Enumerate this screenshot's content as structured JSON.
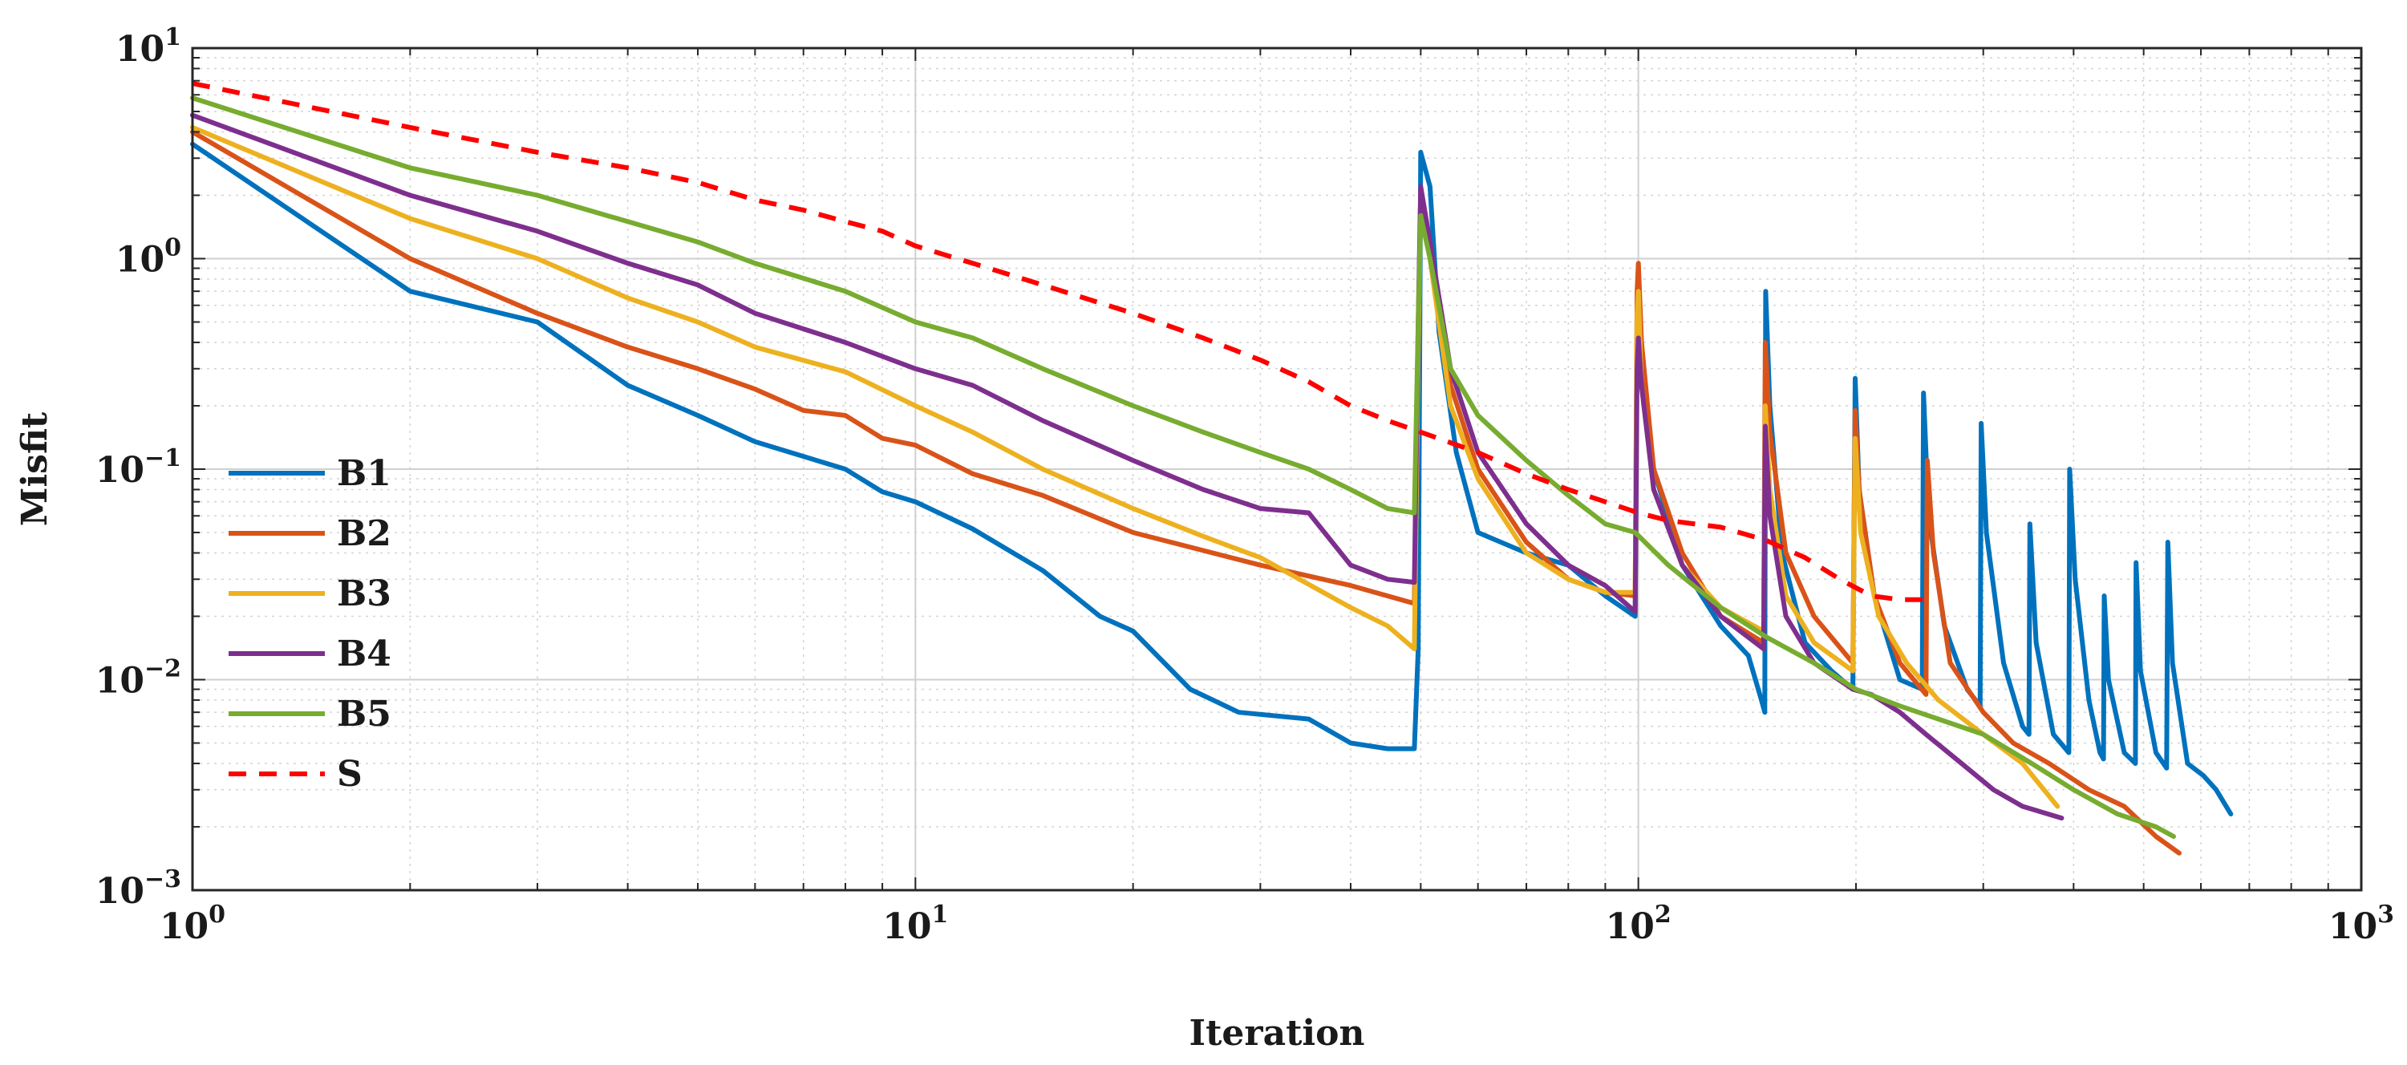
{
  "chart_data": {
    "type": "line",
    "xscale": "log",
    "yscale": "log",
    "title": "",
    "xlabel": "Iteration",
    "ylabel": "Misfit",
    "xlim": [
      1,
      1000
    ],
    "ylim": [
      0.001,
      10
    ],
    "grid": true,
    "minor_grid": true,
    "legend_position": "left",
    "xticks": [
      {
        "value": 1,
        "base": "10",
        "exp": "0"
      },
      {
        "value": 10,
        "base": "10",
        "exp": "1"
      },
      {
        "value": 100,
        "base": "10",
        "exp": "2"
      },
      {
        "value": 1000,
        "base": "10",
        "exp": "3"
      }
    ],
    "yticks": [
      {
        "value": 10,
        "base": "10",
        "exp": "1"
      },
      {
        "value": 1,
        "base": "10",
        "exp": "0"
      },
      {
        "value": 0.1,
        "base": "10",
        "exp": "−1"
      },
      {
        "value": 0.01,
        "base": "10",
        "exp": "−2"
      },
      {
        "value": 0.001,
        "base": "10",
        "exp": "−3"
      }
    ],
    "series": [
      {
        "name": "B1",
        "color": "#0072BD",
        "dash": false,
        "points": [
          [
            1,
            3.5
          ],
          [
            2,
            0.7
          ],
          [
            3,
            0.5
          ],
          [
            4,
            0.25
          ],
          [
            5,
            0.18
          ],
          [
            6,
            0.135
          ],
          [
            8,
            0.1
          ],
          [
            9,
            0.078
          ],
          [
            10,
            0.07
          ],
          [
            12,
            0.052
          ],
          [
            15,
            0.033
          ],
          [
            18,
            0.02
          ],
          [
            20,
            0.017
          ],
          [
            24,
            0.009
          ],
          [
            28,
            0.007
          ],
          [
            35,
            0.0065
          ],
          [
            40,
            0.005
          ],
          [
            45,
            0.0047
          ],
          [
            49,
            0.0047
          ],
          [
            49.6,
            0.014
          ],
          [
            50,
            3.2
          ],
          [
            51.5,
            2.2
          ],
          [
            53,
            0.45
          ],
          [
            56,
            0.12
          ],
          [
            60,
            0.05
          ],
          [
            70,
            0.04
          ],
          [
            80,
            0.035
          ],
          [
            90,
            0.025
          ],
          [
            99,
            0.02
          ],
          [
            99.6,
            0.5
          ],
          [
            100,
            0.9
          ],
          [
            101,
            0.3
          ],
          [
            105,
            0.1
          ],
          [
            115,
            0.035
          ],
          [
            130,
            0.018
          ],
          [
            142,
            0.013
          ],
          [
            148,
            0.008
          ],
          [
            149.6,
            0.007
          ],
          [
            150,
            0.7
          ],
          [
            152,
            0.2
          ],
          [
            158,
            0.04
          ],
          [
            170,
            0.015
          ],
          [
            185,
            0.011
          ],
          [
            198,
            0.009
          ],
          [
            199.5,
            0.27
          ],
          [
            202,
            0.08
          ],
          [
            212,
            0.025
          ],
          [
            230,
            0.01
          ],
          [
            247,
            0.009
          ],
          [
            248,
            0.23
          ],
          [
            252,
            0.06
          ],
          [
            265,
            0.018
          ],
          [
            285,
            0.009
          ],
          [
            297,
            0.0075
          ],
          [
            298,
            0.165
          ],
          [
            303,
            0.05
          ],
          [
            320,
            0.012
          ],
          [
            340,
            0.006
          ],
          [
            347,
            0.0055
          ],
          [
            348,
            0.055
          ],
          [
            355,
            0.015
          ],
          [
            375,
            0.0055
          ],
          [
            394,
            0.0045
          ],
          [
            395,
            0.1
          ],
          [
            402,
            0.03
          ],
          [
            420,
            0.008
          ],
          [
            435,
            0.0045
          ],
          [
            440,
            0.0042
          ],
          [
            441,
            0.025
          ],
          [
            447,
            0.01
          ],
          [
            470,
            0.0045
          ],
          [
            487,
            0.004
          ],
          [
            488,
            0.036
          ],
          [
            495,
            0.011
          ],
          [
            520,
            0.0045
          ],
          [
            538,
            0.0038
          ],
          [
            540,
            0.045
          ],
          [
            548,
            0.012
          ],
          [
            575,
            0.004
          ],
          [
            605,
            0.0035
          ],
          [
            630,
            0.003
          ],
          [
            660,
            0.0023
          ]
        ]
      },
      {
        "name": "B2",
        "color": "#D95319",
        "dash": false,
        "points": [
          [
            1,
            4
          ],
          [
            2,
            1.0
          ],
          [
            3,
            0.55
          ],
          [
            4,
            0.38
          ],
          [
            5,
            0.3
          ],
          [
            6,
            0.24
          ],
          [
            7,
            0.19
          ],
          [
            8,
            0.18
          ],
          [
            9,
            0.14
          ],
          [
            10,
            0.13
          ],
          [
            12,
            0.095
          ],
          [
            15,
            0.075
          ],
          [
            20,
            0.05
          ],
          [
            30,
            0.035
          ],
          [
            40,
            0.028
          ],
          [
            49,
            0.023
          ],
          [
            49.6,
            0.4
          ],
          [
            50,
            2.1
          ],
          [
            51.5,
            1.2
          ],
          [
            55,
            0.25
          ],
          [
            60,
            0.1
          ],
          [
            70,
            0.045
          ],
          [
            80,
            0.03
          ],
          [
            90,
            0.026
          ],
          [
            99,
            0.025
          ],
          [
            99.6,
            0.7
          ],
          [
            100,
            0.95
          ],
          [
            101,
            0.4
          ],
          [
            105,
            0.1
          ],
          [
            115,
            0.04
          ],
          [
            130,
            0.02
          ],
          [
            149,
            0.015
          ],
          [
            149.8,
            0.4
          ],
          [
            152,
            0.15
          ],
          [
            160,
            0.04
          ],
          [
            175,
            0.02
          ],
          [
            198,
            0.012
          ],
          [
            199.5,
            0.19
          ],
          [
            202,
            0.08
          ],
          [
            212,
            0.025
          ],
          [
            230,
            0.012
          ],
          [
            250,
            0.0085
          ],
          [
            251,
            0.11
          ],
          [
            256,
            0.04
          ],
          [
            270,
            0.012
          ],
          [
            300,
            0.007
          ],
          [
            330,
            0.005
          ],
          [
            370,
            0.004
          ],
          [
            420,
            0.003
          ],
          [
            470,
            0.0025
          ],
          [
            520,
            0.0018
          ],
          [
            560,
            0.0015
          ]
        ]
      },
      {
        "name": "B3",
        "color": "#EDB120",
        "dash": false,
        "points": [
          [
            1,
            4.2
          ],
          [
            2,
            1.55
          ],
          [
            3,
            1.0
          ],
          [
            4,
            0.65
          ],
          [
            5,
            0.5
          ],
          [
            6,
            0.38
          ],
          [
            8,
            0.29
          ],
          [
            10,
            0.2
          ],
          [
            12,
            0.15
          ],
          [
            15,
            0.1
          ],
          [
            20,
            0.065
          ],
          [
            25,
            0.048
          ],
          [
            30,
            0.038
          ],
          [
            40,
            0.022
          ],
          [
            45,
            0.018
          ],
          [
            49,
            0.014
          ],
          [
            49.6,
            0.35
          ],
          [
            50,
            1.9
          ],
          [
            51.5,
            1.0
          ],
          [
            55,
            0.2
          ],
          [
            60,
            0.09
          ],
          [
            70,
            0.04
          ],
          [
            80,
            0.03
          ],
          [
            90,
            0.026
          ],
          [
            99,
            0.026
          ],
          [
            99.6,
            0.55
          ],
          [
            100,
            0.7
          ],
          [
            101,
            0.25
          ],
          [
            105,
            0.08
          ],
          [
            115,
            0.035
          ],
          [
            130,
            0.022
          ],
          [
            149,
            0.017
          ],
          [
            149.8,
            0.2
          ],
          [
            152,
            0.08
          ],
          [
            160,
            0.025
          ],
          [
            175,
            0.015
          ],
          [
            198,
            0.011
          ],
          [
            199.5,
            0.14
          ],
          [
            203,
            0.05
          ],
          [
            215,
            0.02
          ],
          [
            235,
            0.012
          ],
          [
            260,
            0.008
          ],
          [
            300,
            0.0055
          ],
          [
            340,
            0.004
          ],
          [
            380,
            0.0025
          ]
        ]
      },
      {
        "name": "B4",
        "color": "#7E2F8E",
        "dash": false,
        "points": [
          [
            1,
            4.8
          ],
          [
            2,
            2.0
          ],
          [
            3,
            1.35
          ],
          [
            4,
            0.95
          ],
          [
            5,
            0.75
          ],
          [
            6,
            0.55
          ],
          [
            8,
            0.4
          ],
          [
            10,
            0.3
          ],
          [
            12,
            0.25
          ],
          [
            15,
            0.17
          ],
          [
            20,
            0.11
          ],
          [
            25,
            0.08
          ],
          [
            30,
            0.065
          ],
          [
            35,
            0.062
          ],
          [
            40,
            0.035
          ],
          [
            45,
            0.03
          ],
          [
            49,
            0.029
          ],
          [
            49.6,
            0.5
          ],
          [
            50,
            2.2
          ],
          [
            51.5,
            1.2
          ],
          [
            55,
            0.3
          ],
          [
            60,
            0.12
          ],
          [
            70,
            0.055
          ],
          [
            80,
            0.035
          ],
          [
            90,
            0.028
          ],
          [
            99,
            0.021
          ],
          [
            99.6,
            0.3
          ],
          [
            100,
            0.42
          ],
          [
            101,
            0.25
          ],
          [
            105,
            0.08
          ],
          [
            115,
            0.035
          ],
          [
            130,
            0.02
          ],
          [
            149,
            0.014
          ],
          [
            149.8,
            0.16
          ],
          [
            152,
            0.06
          ],
          [
            160,
            0.02
          ],
          [
            175,
            0.012
          ],
          [
            198,
            0.009
          ],
          [
            210,
            0.0085
          ],
          [
            230,
            0.007
          ],
          [
            250,
            0.0055
          ],
          [
            280,
            0.004
          ],
          [
            310,
            0.003
          ],
          [
            340,
            0.0025
          ],
          [
            385,
            0.0022
          ]
        ]
      },
      {
        "name": "B5",
        "color": "#77AC30",
        "dash": false,
        "points": [
          [
            1,
            5.8
          ],
          [
            2,
            2.7
          ],
          [
            3,
            2.0
          ],
          [
            4,
            1.5
          ],
          [
            5,
            1.2
          ],
          [
            6,
            0.95
          ],
          [
            8,
            0.7
          ],
          [
            10,
            0.5
          ],
          [
            12,
            0.42
          ],
          [
            15,
            0.3
          ],
          [
            20,
            0.2
          ],
          [
            25,
            0.15
          ],
          [
            30,
            0.12
          ],
          [
            35,
            0.1
          ],
          [
            40,
            0.08
          ],
          [
            45,
            0.065
          ],
          [
            49,
            0.062
          ],
          [
            49.6,
            0.5
          ],
          [
            50,
            1.6
          ],
          [
            51.5,
            1.0
          ],
          [
            55,
            0.3
          ],
          [
            60,
            0.18
          ],
          [
            70,
            0.11
          ],
          [
            80,
            0.075
          ],
          [
            90,
            0.055
          ],
          [
            99,
            0.05
          ],
          [
            110,
            0.035
          ],
          [
            130,
            0.022
          ],
          [
            150,
            0.016
          ],
          [
            175,
            0.012
          ],
          [
            200,
            0.009
          ],
          [
            230,
            0.0075
          ],
          [
            260,
            0.0065
          ],
          [
            300,
            0.0055
          ],
          [
            350,
            0.004
          ],
          [
            400,
            0.003
          ],
          [
            460,
            0.0023
          ],
          [
            520,
            0.002
          ],
          [
            550,
            0.0018
          ]
        ]
      },
      {
        "name": "S",
        "color": "#FF0000",
        "dash": true,
        "points": [
          [
            1,
            6.8
          ],
          [
            2,
            4.2
          ],
          [
            3,
            3.2
          ],
          [
            4,
            2.7
          ],
          [
            5,
            2.3
          ],
          [
            6,
            1.9
          ],
          [
            7,
            1.7
          ],
          [
            8,
            1.5
          ],
          [
            9,
            1.35
          ],
          [
            10,
            1.15
          ],
          [
            12,
            0.95
          ],
          [
            15,
            0.75
          ],
          [
            20,
            0.55
          ],
          [
            25,
            0.42
          ],
          [
            30,
            0.33
          ],
          [
            35,
            0.26
          ],
          [
            40,
            0.2
          ],
          [
            45,
            0.17
          ],
          [
            50,
            0.15
          ],
          [
            60,
            0.12
          ],
          [
            70,
            0.095
          ],
          [
            80,
            0.08
          ],
          [
            90,
            0.07
          ],
          [
            100,
            0.062
          ],
          [
            110,
            0.057
          ],
          [
            130,
            0.053
          ],
          [
            150,
            0.046
          ],
          [
            170,
            0.038
          ],
          [
            190,
            0.03
          ],
          [
            210,
            0.025
          ],
          [
            230,
            0.024
          ],
          [
            250,
            0.024
          ]
        ]
      }
    ]
  }
}
